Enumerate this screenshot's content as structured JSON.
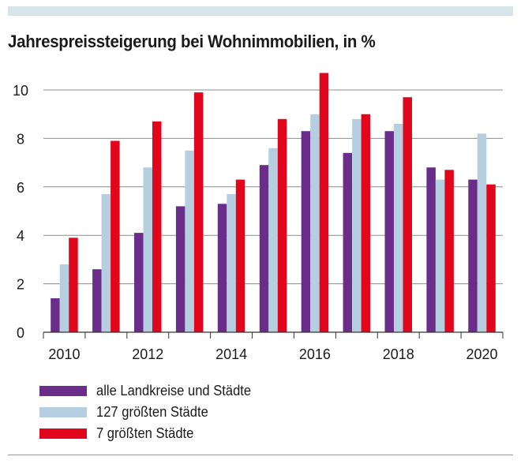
{
  "chart_data": {
    "type": "bar",
    "title": "Jahrespreissteigerung bei Wohnimmobilien, in %",
    "categories": [
      "2010",
      "2011",
      "2012",
      "2013",
      "2014",
      "2015",
      "2016",
      "2017",
      "2018",
      "2019",
      "2020"
    ],
    "x_tick_labels": [
      "2010",
      "",
      "2012",
      "",
      "2014",
      "",
      "2016",
      "",
      "2018",
      "",
      "2020"
    ],
    "y_ticks": [
      "0",
      "2",
      "4",
      "6",
      "8",
      "10"
    ],
    "ylim": [
      0,
      11
    ],
    "grid": true,
    "legend_position": "bottom-left",
    "series": [
      {
        "name": "alle Landkreise und Städte",
        "color": "#6b2d8a",
        "values": [
          1.4,
          2.6,
          4.1,
          5.2,
          5.3,
          6.9,
          8.3,
          7.4,
          8.3,
          6.8,
          6.3
        ]
      },
      {
        "name": "127 größten Städte",
        "color": "#b6cfe0",
        "values": [
          2.8,
          5.7,
          6.8,
          7.5,
          5.7,
          7.6,
          9.0,
          8.8,
          8.6,
          6.3,
          8.2
        ]
      },
      {
        "name": "7 größten Städte",
        "color": "#e2061d",
        "values": [
          3.9,
          7.9,
          8.7,
          9.9,
          6.3,
          8.8,
          10.7,
          9.0,
          9.7,
          6.7,
          6.1
        ]
      }
    ]
  }
}
